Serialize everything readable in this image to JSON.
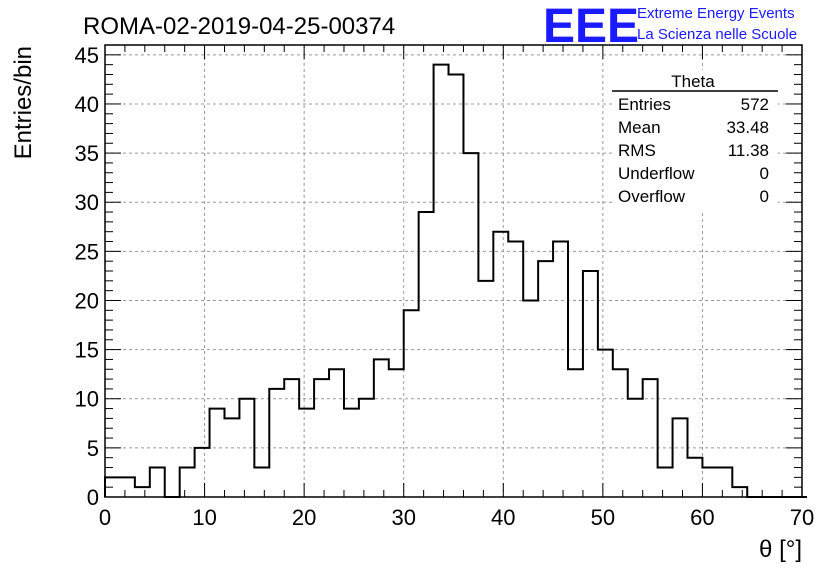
{
  "header": {
    "run_title": "ROMA-02-2019-04-25-00374",
    "logo_text": "EEE",
    "logo_line1": "Extreme Energy Events",
    "logo_line2": "La Scienza nelle Scuole",
    "logo_color": "#1a1aff"
  },
  "stats": {
    "title": "Theta",
    "rows": [
      {
        "label": "Entries",
        "value": "572"
      },
      {
        "label": "Mean",
        "value": "33.48"
      },
      {
        "label": "RMS",
        "value": "11.38"
      },
      {
        "label": "Underflow",
        "value": "0"
      },
      {
        "label": "Overflow",
        "value": "0"
      }
    ]
  },
  "chart_data": {
    "type": "bar",
    "title": "ROMA-02-2019-04-25-00374",
    "xlabel": "θ [°]",
    "ylabel": "Entries/bin",
    "xlim": [
      0,
      70
    ],
    "ylim": [
      0,
      46
    ],
    "grid": true,
    "bin_width": 1.5,
    "bin_start": 0,
    "values": [
      2,
      2,
      1,
      3,
      0,
      3,
      5,
      9,
      8,
      10,
      3,
      11,
      12,
      9,
      12,
      13,
      9,
      10,
      14,
      13,
      19,
      29,
      44,
      43,
      35,
      22,
      27,
      26,
      20,
      24,
      26,
      13,
      23,
      15,
      13,
      10,
      12,
      3,
      8,
      4,
      3,
      3,
      1,
      0,
      0,
      0,
      0
    ],
    "x_ticks": [
      0,
      10,
      20,
      30,
      40,
      50,
      60,
      70
    ],
    "y_ticks": [
      0,
      5,
      10,
      15,
      20,
      25,
      30,
      35,
      40,
      45
    ]
  }
}
